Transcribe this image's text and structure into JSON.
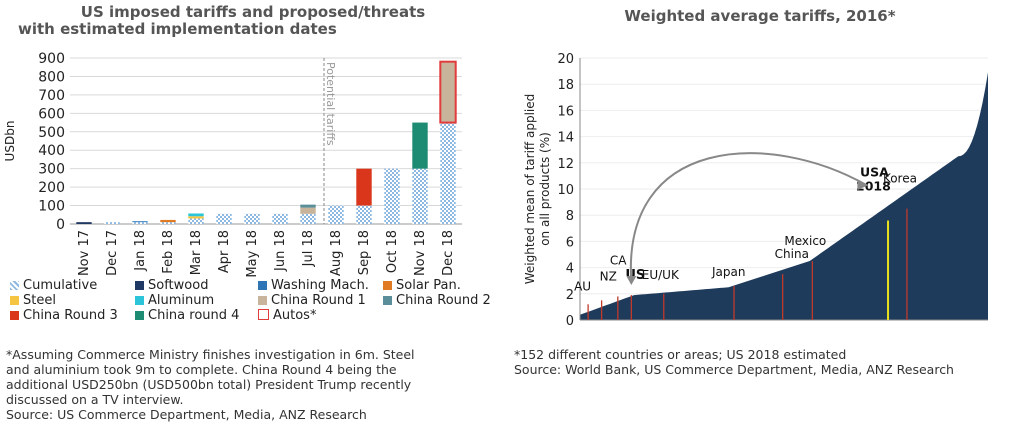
{
  "left": {
    "title_line1": "US imposed tariffs and proposed/threats",
    "title_line2": "with estimated implementation dates",
    "ylabel": "USDbn",
    "potential_label": "Potential tariffs",
    "footnote": "*Assuming Commerce Ministry finishes investigation in 6m. Steel\nand aluminium took 9m to complete. China Round 4 being the\nadditional USD250bn (USD500bn total) President Trump recently\ndiscussed on a TV interview.\nSource: US Commerce Department, Media, ANZ Research",
    "legend": [
      {
        "label": "Cumulative",
        "color": "#9dc3e6"
      },
      {
        "label": "Softwood",
        "color": "#1f3864"
      },
      {
        "label": "Washing Mach.",
        "color": "#2e75b6"
      },
      {
        "label": "Solar Pan.",
        "color": "#e07b24"
      },
      {
        "label": "Steel",
        "color": "#f5c542"
      },
      {
        "label": "Aluminum",
        "color": "#2cc4d8"
      },
      {
        "label": "China Round 1",
        "color": "#c8b49a"
      },
      {
        "label": "China Round 2",
        "color": "#5a8f9a"
      },
      {
        "label": "China Round 3",
        "color": "#d9361c"
      },
      {
        "label": "China round 4",
        "color": "#1e8c73"
      },
      {
        "label": "Autos*",
        "color": "#ffffff"
      }
    ]
  },
  "right": {
    "title": "Weighted average tariffs, 2016*",
    "ylabel_line1": "Weighted mean of tariff applied",
    "ylabel_line2": "on all products (%)",
    "footnote": "*152 different countries or areas; US 2018 estimated\nSource: World Bank, US Commerce Department, Media, ANZ Research"
  },
  "chart_data": [
    {
      "type": "bar",
      "title": "US imposed tariffs and proposed/threats with estimated implementation dates",
      "ylabel": "USDbn",
      "ylim": [
        0,
        900
      ],
      "yticks": [
        0,
        100,
        200,
        300,
        400,
        500,
        600,
        700,
        800,
        900
      ],
      "stacked": true,
      "categories": [
        "Nov 17",
        "Dec 17",
        "Jan 18",
        "Feb 18",
        "Mar 18",
        "Apr 18",
        "May 18",
        "Jun 18",
        "Jul 18",
        "Aug 18",
        "Sep 18",
        "Oct 18",
        "Nov 18",
        "Dec 18"
      ],
      "potential_from_category": "Aug 18",
      "series": [
        {
          "name": "Cumulative",
          "color": "#9dc3e6",
          "values": [
            0,
            10,
            10,
            10,
            30,
            55,
            55,
            55,
            55,
            100,
            100,
            300,
            300,
            550
          ]
        },
        {
          "name": "Softwood",
          "color": "#1f3864",
          "values": [
            10,
            0,
            0,
            0,
            0,
            0,
            0,
            0,
            0,
            0,
            0,
            0,
            0,
            0
          ]
        },
        {
          "name": "Washing Mach.",
          "color": "#2e75b6",
          "values": [
            0,
            0,
            5,
            0,
            0,
            0,
            0,
            0,
            0,
            0,
            0,
            0,
            0,
            0
          ]
        },
        {
          "name": "Solar Pan.",
          "color": "#e07b24",
          "values": [
            0,
            0,
            0,
            12,
            0,
            0,
            0,
            0,
            0,
            0,
            0,
            0,
            0,
            0
          ]
        },
        {
          "name": "Steel",
          "color": "#f5c542",
          "values": [
            0,
            0,
            0,
            0,
            12,
            0,
            0,
            0,
            0,
            0,
            0,
            0,
            0,
            0
          ]
        },
        {
          "name": "Aluminum",
          "color": "#2cc4d8",
          "values": [
            0,
            0,
            0,
            0,
            15,
            0,
            0,
            0,
            0,
            0,
            0,
            0,
            0,
            0
          ]
        },
        {
          "name": "China Round 1",
          "color": "#c8b49a",
          "values": [
            0,
            0,
            0,
            0,
            0,
            0,
            0,
            0,
            34,
            0,
            0,
            0,
            0,
            0
          ]
        },
        {
          "name": "China Round 2",
          "color": "#5a8f9a",
          "values": [
            0,
            0,
            0,
            0,
            0,
            0,
            0,
            0,
            16,
            0,
            0,
            0,
            0,
            0
          ]
        },
        {
          "name": "China Round 3",
          "color": "#d9361c",
          "values": [
            0,
            0,
            0,
            0,
            0,
            0,
            0,
            0,
            0,
            0,
            200,
            0,
            0,
            0
          ]
        },
        {
          "name": "China round 4",
          "color": "#1e8c73",
          "values": [
            0,
            0,
            0,
            0,
            0,
            0,
            0,
            0,
            0,
            0,
            0,
            0,
            250,
            0
          ]
        },
        {
          "name": "Autos*",
          "color": "#c8b49a",
          "outline": "#e03c3c",
          "values": [
            0,
            0,
            0,
            0,
            0,
            0,
            0,
            0,
            0,
            0,
            0,
            0,
            0,
            330
          ]
        }
      ]
    },
    {
      "type": "area",
      "title": "Weighted average tariffs, 2016*",
      "ylabel": "Weighted mean of tariff applied on all products (%)",
      "ylim": [
        0,
        20
      ],
      "yticks": [
        0,
        2,
        4,
        6,
        8,
        10,
        12,
        14,
        16,
        18,
        20
      ],
      "n_points": 152,
      "fill_color": "#1f3b5c",
      "highlight_color": "#e8e01a",
      "marker_color": "#c0392b",
      "annotations": [
        {
          "label": "AU",
          "index": 3,
          "value": 1.2
        },
        {
          "label": "NZ",
          "index": 8,
          "value": 1.5
        },
        {
          "label": "CA",
          "index": 14,
          "value": 1.8
        },
        {
          "label": "US",
          "index": 19,
          "value": 1.9,
          "bold": true
        },
        {
          "label": "EU/UK",
          "index": 31,
          "value": 2.0
        },
        {
          "label": "Japan",
          "index": 57,
          "value": 2.6
        },
        {
          "label": "China",
          "index": 75,
          "value": 3.5
        },
        {
          "label": "Mexico",
          "index": 86,
          "value": 4.5
        },
        {
          "label": "USA 2018",
          "index": 114,
          "value": 7.6,
          "bold": true,
          "highlight": true
        },
        {
          "label": "Korea",
          "index": 121,
          "value": 8.5
        }
      ]
    }
  ]
}
